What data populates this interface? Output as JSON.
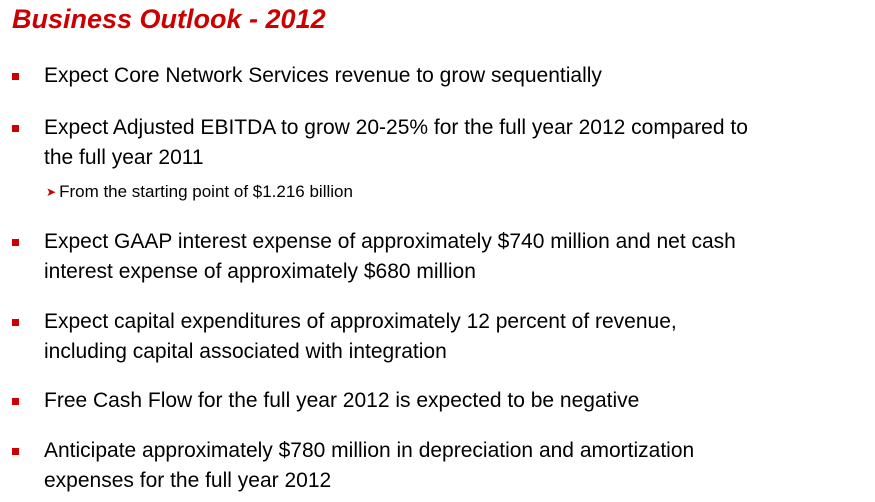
{
  "title": "Business Outlook - 2012",
  "colors": {
    "accent": "#cc0000",
    "text": "#000000",
    "background": "#ffffff"
  },
  "bullets": [
    {
      "lines": [
        "Expect Core Network Services revenue to grow sequentially"
      ]
    },
    {
      "lines": [
        "Expect Adjusted EBITDA to grow 20-25% for the full year 2012 compared to",
        "the full year 2011"
      ],
      "sub_bullet": "From the starting point of $1.216 billion"
    },
    {
      "lines": [
        "Expect GAAP interest expense of approximately $740 million and net cash",
        "interest expense of approximately $680 million"
      ]
    },
    {
      "lines": [
        "Expect capital expenditures of approximately 12 percent of revenue,",
        "including capital associated with integration"
      ]
    },
    {
      "lines": [
        "Free Cash Flow for the full year 2012 is expected to be negative"
      ]
    },
    {
      "lines": [
        "Anticipate approximately $780 million in depreciation and amortization",
        "expenses for the full year 2012"
      ]
    }
  ]
}
